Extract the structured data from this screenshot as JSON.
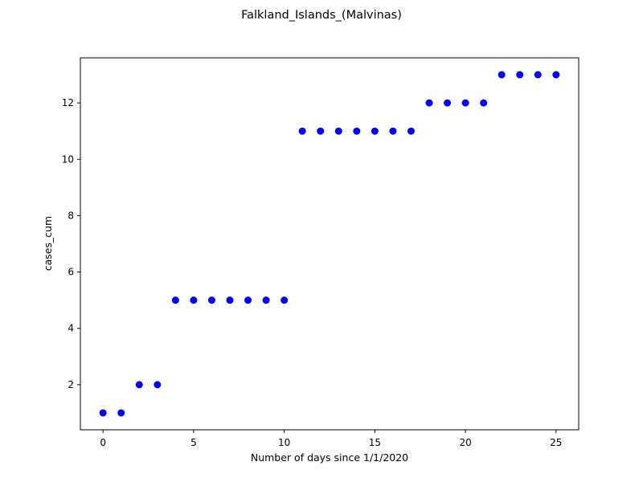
{
  "chart_data": {
    "type": "scatter",
    "title": "Falkland_Islands_(Malvinas)",
    "xlabel": "Number of days since 1/1/2020",
    "ylabel": "cases_cum",
    "xlim": [
      -1.25,
      26.25
    ],
    "ylim": [
      0.4,
      13.6
    ],
    "xticks": [
      0,
      5,
      10,
      15,
      20,
      25
    ],
    "yticks": [
      2,
      4,
      6,
      8,
      10,
      12
    ],
    "grid": false,
    "marker_color": "#0000ff",
    "series": [
      {
        "x": [
          0,
          1,
          2,
          3,
          4,
          5,
          6,
          7,
          8,
          9,
          10,
          11,
          12,
          13,
          14,
          15,
          16,
          17,
          18,
          19,
          20,
          21,
          22,
          23,
          24,
          25
        ],
        "y": [
          1,
          1,
          2,
          2,
          5,
          5,
          5,
          5,
          5,
          5,
          5,
          11,
          11,
          11,
          11,
          11,
          11,
          11,
          12,
          12,
          12,
          12,
          13,
          13,
          13,
          13
        ]
      }
    ]
  }
}
